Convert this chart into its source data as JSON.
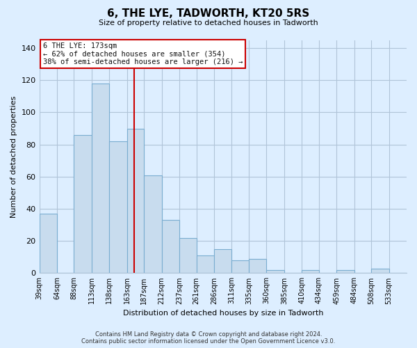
{
  "title": "6, THE LYE, TADWORTH, KT20 5RS",
  "subtitle": "Size of property relative to detached houses in Tadworth",
  "xlabel": "Distribution of detached houses by size in Tadworth",
  "ylabel": "Number of detached properties",
  "bar_color": "#c8dcee",
  "bar_edge_color": "#7aadd0",
  "background_color": "#ddeeff",
  "plot_bg_color": "#ddeeff",
  "grid_color": "#b0c4d8",
  "bin_labels": [
    "39sqm",
    "64sqm",
    "88sqm",
    "113sqm",
    "138sqm",
    "163sqm",
    "187sqm",
    "212sqm",
    "237sqm",
    "261sqm",
    "286sqm",
    "311sqm",
    "335sqm",
    "360sqm",
    "385sqm",
    "410sqm",
    "434sqm",
    "459sqm",
    "484sqm",
    "508sqm",
    "533sqm"
  ],
  "bin_edges": [
    39,
    64,
    88,
    113,
    138,
    163,
    187,
    212,
    237,
    261,
    286,
    311,
    335,
    360,
    385,
    410,
    434,
    459,
    484,
    508,
    533,
    558
  ],
  "counts": [
    37,
    0,
    86,
    118,
    82,
    90,
    61,
    33,
    22,
    11,
    15,
    8,
    9,
    2,
    0,
    2,
    0,
    2,
    0,
    3,
    0
  ],
  "property_size": 173,
  "property_label": "6 THE LYE: 173sqm",
  "annotation_line1": "← 62% of detached houses are smaller (354)",
  "annotation_line2": "38% of semi-detached houses are larger (216) →",
  "vline_color": "#cc0000",
  "annotation_box_edge_color": "#cc0000",
  "ylim": [
    0,
    145
  ],
  "yticks": [
    0,
    20,
    40,
    60,
    80,
    100,
    120,
    140
  ],
  "footer_line1": "Contains HM Land Registry data © Crown copyright and database right 2024.",
  "footer_line2": "Contains public sector information licensed under the Open Government Licence v3.0."
}
